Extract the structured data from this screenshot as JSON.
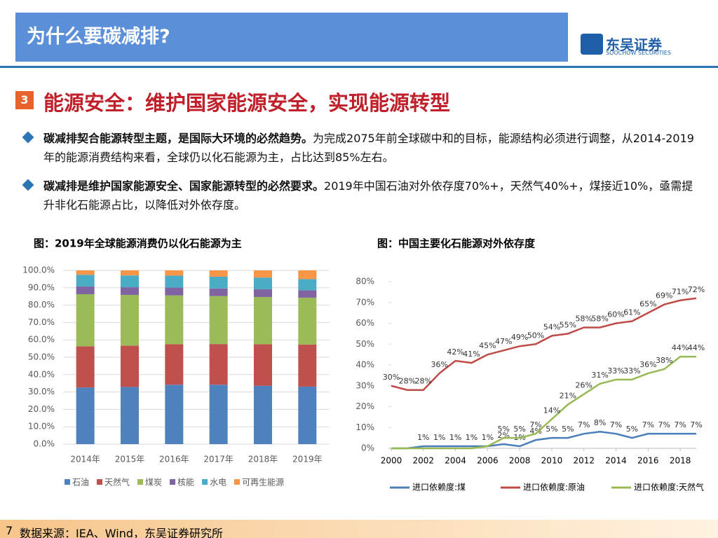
{
  "header": {
    "title": "为什么要碳减排?",
    "logo_cn": "东吴证券",
    "logo_en": "SOOCHOW SECURITIES"
  },
  "section": {
    "number": "3",
    "title": "能源安全：维护国家能源安全，实现能源转型"
  },
  "bullets": [
    {
      "bold": "碳减排契合能源转型主题，是国际大环境的必然趋势。",
      "text": "为完成2075年前全球碳中和的目标，能源结构必须进行调整，从2014-2019年的能源消费结构来看，全球仍以化石能源为主，占比达到85%左右。"
    },
    {
      "bold": "碳减排是维护国家能源安全、国家能源转型的必然要求。",
      "text": "2019年中国石油对外依存度70%+，天然气40%+，煤接近10%，亟需提升非化石能源占比，以降低对外依存度。"
    }
  ],
  "footer": {
    "page": "7",
    "source": "数据来源：IEA、Wind，东吴证券研究所"
  },
  "chart_data": [
    {
      "type": "stacked_bar",
      "title": "图：2019年全球能源消费仍以化石能源为主",
      "categories": [
        "2014年",
        "2015年",
        "2016年",
        "2017年",
        "2018年",
        "2019年"
      ],
      "series": [
        {
          "name": "石油",
          "color": "#4f81bd",
          "values": [
            32.6,
            32.9,
            34.2,
            34.2,
            33.6,
            33.1
          ]
        },
        {
          "name": "天然气",
          "color": "#c0504d",
          "values": [
            23.7,
            23.8,
            23.3,
            23.4,
            23.9,
            24.2
          ]
        },
        {
          "name": "煤炭",
          "color": "#9bbb59",
          "values": [
            30.0,
            29.2,
            28.1,
            27.6,
            27.2,
            27.0
          ]
        },
        {
          "name": "核能",
          "color": "#8064a2",
          "values": [
            4.4,
            4.4,
            4.5,
            4.4,
            4.4,
            4.3
          ]
        },
        {
          "name": "水电",
          "color": "#4bacc6",
          "values": [
            6.8,
            6.8,
            6.9,
            6.8,
            6.8,
            6.4
          ]
        },
        {
          "name": "可再生能源",
          "color": "#f79646",
          "values": [
            2.5,
            2.9,
            3.0,
            3.6,
            4.1,
            5.0
          ]
        }
      ],
      "ylim": [
        0,
        100
      ],
      "yticks": [
        {
          "value": 0,
          "label": "0.0%"
        },
        {
          "value": 10,
          "label": "10.0%"
        },
        {
          "value": 20,
          "label": "20.0%"
        },
        {
          "value": 30,
          "label": "30.0%"
        },
        {
          "value": 40,
          "label": "40.0%"
        },
        {
          "value": 50,
          "label": "50.0%"
        },
        {
          "value": 60,
          "label": "60.0%"
        },
        {
          "value": 70,
          "label": "70.0%"
        },
        {
          "value": 80,
          "label": "80.0%"
        },
        {
          "value": 90,
          "label": "90.0%"
        },
        {
          "value": 100,
          "label": "100.0%"
        }
      ],
      "grid": true
    },
    {
      "type": "line",
      "title": "图：中国主要化石能源对外依存度",
      "x": [
        2000,
        2001,
        2002,
        2003,
        2004,
        2005,
        2006,
        2007,
        2008,
        2009,
        2010,
        2011,
        2012,
        2013,
        2014,
        2015,
        2016,
        2017,
        2018,
        2019
      ],
      "series": [
        {
          "name": "进口依赖度:煤",
          "color": "#4a7ebb",
          "values": [
            0,
            0,
            1,
            1,
            1,
            1,
            1,
            2,
            1,
            4,
            5,
            5,
            7,
            8,
            7,
            5,
            7,
            7,
            7,
            7
          ],
          "value_labels": [
            null,
            null,
            "1%",
            "1%",
            "1%",
            "1%",
            "1%",
            "2%",
            "1%",
            "4%",
            "5%",
            "5%",
            "7%",
            "8%",
            "7%",
            "5%",
            "7%",
            "7%",
            "7%",
            "7%"
          ]
        },
        {
          "name": "进口依赖度:原油",
          "color": "#be4b48",
          "values": [
            30,
            28,
            28,
            36,
            42,
            41,
            45,
            47,
            49,
            50,
            54,
            55,
            58,
            58,
            60,
            61,
            65,
            69,
            71,
            72
          ],
          "value_labels": [
            "30%",
            "28%",
            "28%",
            "36%",
            "42%",
            "41%",
            "45%",
            "47%",
            "49%",
            "50%",
            "54%",
            "55%",
            "58%",
            "58%",
            "60%",
            "61%",
            "65%",
            "69%",
            "71%",
            "72%"
          ]
        },
        {
          "name": "进口依赖度:天然气",
          "color": "#98b954",
          "values": [
            0,
            0,
            0,
            0,
            0,
            0,
            1,
            5,
            5,
            7,
            14,
            21,
            26,
            31,
            33,
            33,
            36,
            38,
            44,
            44
          ],
          "value_labels": [
            null,
            null,
            null,
            null,
            null,
            null,
            null,
            "5%",
            "5%",
            "7%",
            "14%",
            "21%",
            "26%",
            "31%",
            "33%",
            "33%",
            "36%",
            "38%",
            "44%",
            "44%"
          ]
        }
      ],
      "xlim": [
        2000,
        2019
      ],
      "xticks": [
        2000,
        2002,
        2004,
        2006,
        2008,
        2010,
        2012,
        2014,
        2016,
        2018
      ],
      "ylim": [
        0,
        80
      ],
      "yticks": [
        {
          "value": 0,
          "label": "0%"
        },
        {
          "value": 10,
          "label": "10%"
        },
        {
          "value": 20,
          "label": "20%"
        },
        {
          "value": 30,
          "label": "30%"
        },
        {
          "value": 40,
          "label": "40%"
        },
        {
          "value": 50,
          "label": "50%"
        },
        {
          "value": 60,
          "label": "60%"
        },
        {
          "value": 70,
          "label": "70%"
        },
        {
          "value": 80,
          "label": "80%"
        }
      ],
      "grid": false
    }
  ]
}
